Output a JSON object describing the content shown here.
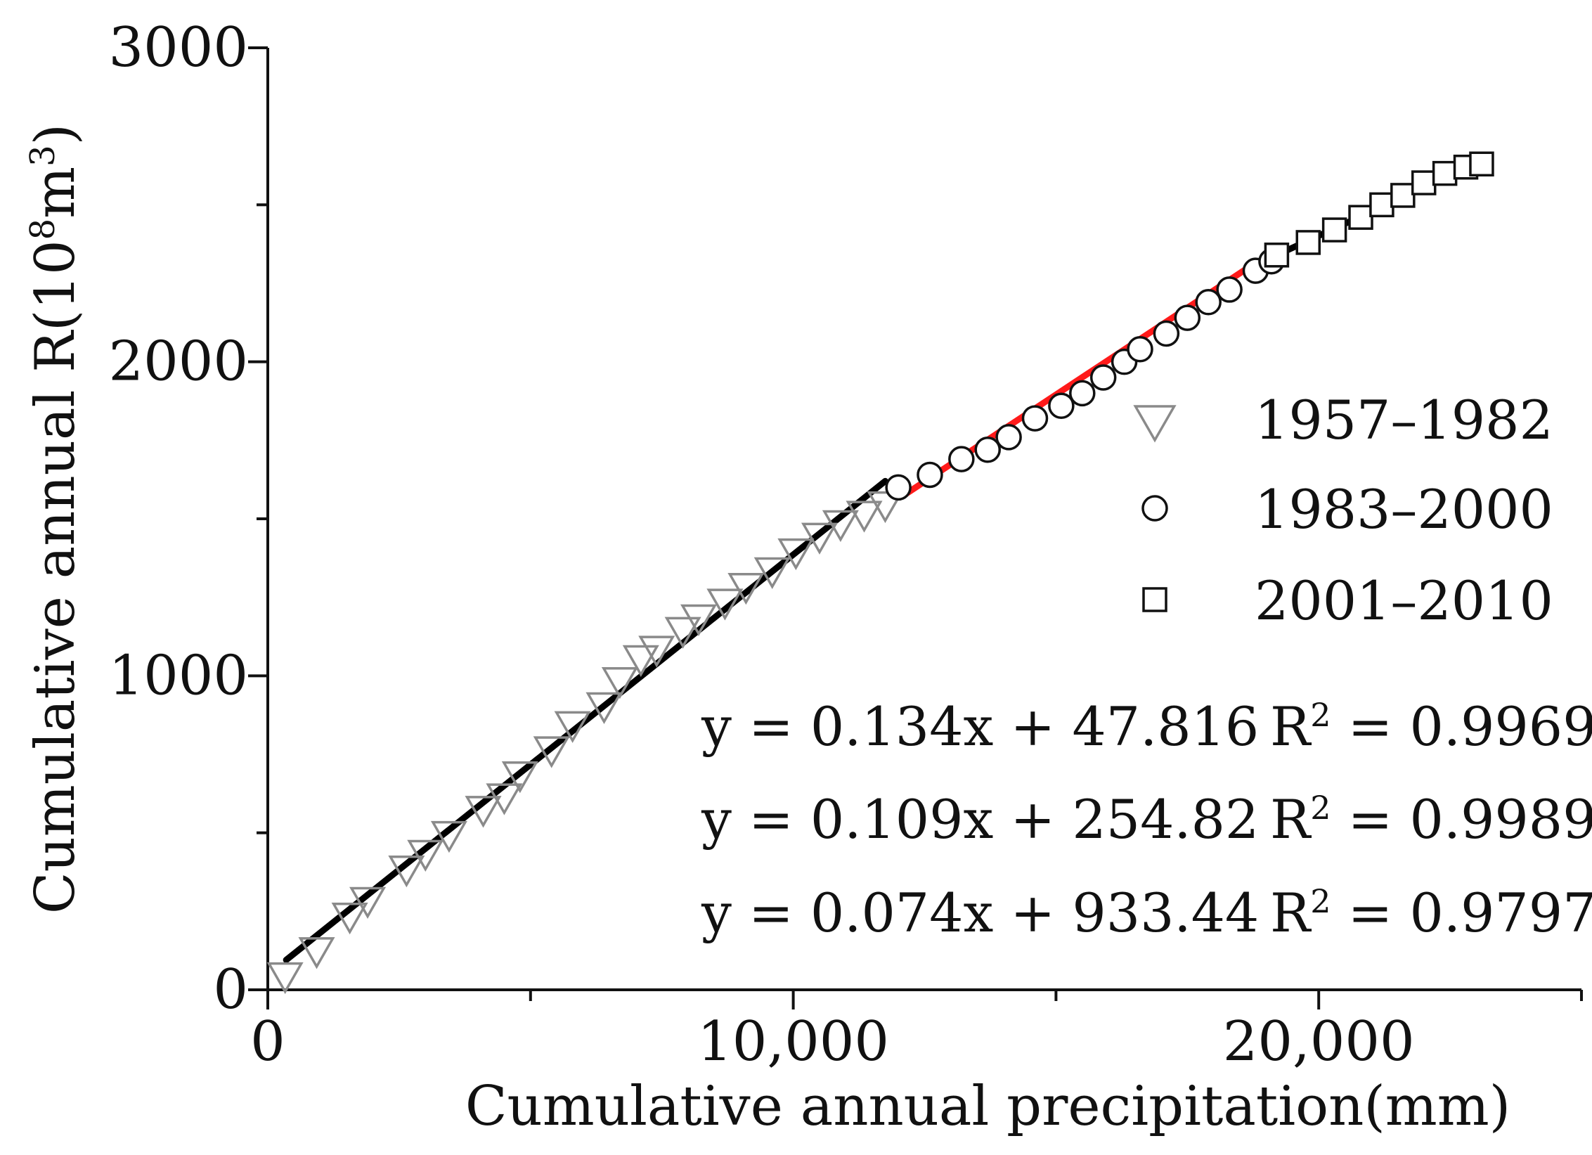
{
  "chart_data": {
    "type": "scatter",
    "xlabel": "Cumulative annual precipitation(mm)",
    "ylabel_main": "Cumulative annual R(10",
    "ylabel_sup1": "8",
    "ylabel_mid": "m",
    "ylabel_sup2": "3",
    "ylabel_end": ")",
    "xlim": [
      0,
      25000
    ],
    "ylim": [
      0,
      3000
    ],
    "x_ticks": [
      {
        "value": 0,
        "label": "0"
      },
      {
        "value": 10000,
        "label": "10,000"
      },
      {
        "value": 20000,
        "label": "20,000"
      }
    ],
    "x_minor_ticks": [
      5000,
      15000,
      25000
    ],
    "y_ticks": [
      {
        "value": 0,
        "label": "0"
      },
      {
        "value": 1000,
        "label": "1000"
      },
      {
        "value": 2000,
        "label": "2000"
      },
      {
        "value": 3000,
        "label": "3000"
      }
    ],
    "y_minor_ticks": [
      500,
      1500,
      2500
    ],
    "series": [
      {
        "name": "1957–1982",
        "marker": "triangle-down",
        "color": "#8a8a8a",
        "points": [
          [
            330,
            50
          ],
          [
            930,
            130
          ],
          [
            1560,
            240
          ],
          [
            1900,
            290
          ],
          [
            2640,
            390
          ],
          [
            3000,
            440
          ],
          [
            3450,
            500
          ],
          [
            4100,
            580
          ],
          [
            4500,
            620
          ],
          [
            4800,
            690
          ],
          [
            5400,
            770
          ],
          [
            5800,
            850
          ],
          [
            6400,
            910
          ],
          [
            6700,
            990
          ],
          [
            7100,
            1060
          ],
          [
            7400,
            1090
          ],
          [
            7900,
            1150
          ],
          [
            8200,
            1190
          ],
          [
            8700,
            1240
          ],
          [
            9100,
            1290
          ],
          [
            9600,
            1340
          ],
          [
            10050,
            1400
          ],
          [
            10500,
            1450
          ],
          [
            10900,
            1490
          ],
          [
            11350,
            1520
          ],
          [
            11750,
            1550
          ]
        ]
      },
      {
        "name": "1983–2000",
        "marker": "circle",
        "color": "#111111",
        "points": [
          [
            12000,
            1600
          ],
          [
            12600,
            1640
          ],
          [
            13200,
            1690
          ],
          [
            13700,
            1720
          ],
          [
            14100,
            1760
          ],
          [
            14600,
            1820
          ],
          [
            15100,
            1860
          ],
          [
            15500,
            1900
          ],
          [
            15900,
            1950
          ],
          [
            16300,
            2000
          ],
          [
            16600,
            2040
          ],
          [
            17100,
            2090
          ],
          [
            17500,
            2140
          ],
          [
            17900,
            2190
          ],
          [
            18300,
            2230
          ],
          [
            18800,
            2290
          ],
          [
            19100,
            2320
          ]
        ]
      },
      {
        "name": "2001–2010",
        "marker": "square",
        "color": "#111111",
        "points": [
          [
            19200,
            2340
          ],
          [
            19800,
            2380
          ],
          [
            20300,
            2420
          ],
          [
            20800,
            2460
          ],
          [
            21200,
            2500
          ],
          [
            21600,
            2530
          ],
          [
            22000,
            2570
          ],
          [
            22400,
            2600
          ],
          [
            22800,
            2620
          ],
          [
            23100,
            2630
          ]
        ]
      }
    ],
    "fit_lines": [
      {
        "equation": "y = 0.134x + 47.816",
        "r2_label": "R",
        "r2_sup": "2",
        "r2_value": "= 0.9969",
        "color": "#000000",
        "x_range": [
          350,
          11750
        ],
        "y_range": [
          95,
          1620
        ]
      },
      {
        "equation": "y = 0.109x + 254.82",
        "r2_label": "R",
        "r2_sup": "2",
        "r2_value": "= 0.9989",
        "color": "#ff1a1a",
        "x_range": [
          12150,
          18750
        ],
        "y_range": [
          1580,
          2310
        ]
      },
      {
        "equation": "y = 0.074x + 933.44",
        "r2_label": "R",
        "r2_sup": "2",
        "r2_value": "= 0.9797",
        "color": "#000000",
        "x_range": [
          19200,
          23100
        ],
        "y_range": [
          2340,
          2640
        ]
      }
    ],
    "legend_position": "right-middle",
    "grid": false
  }
}
